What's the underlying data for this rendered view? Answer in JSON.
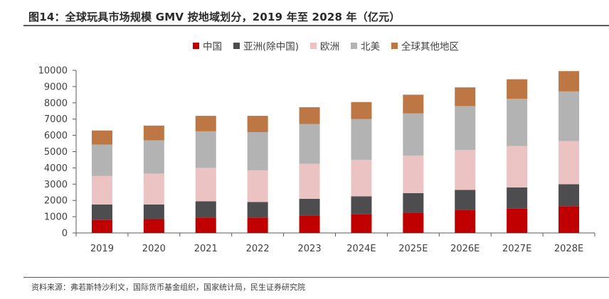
{
  "title": "图14：全球玩具市场规模 GMV 按地域划分，2019 年至 2028 年（亿元）",
  "source": "资料来源：弗若斯特沙利文，国际货币基金组织，国家统计局，民生证券研究院",
  "chart_data": {
    "type": "bar",
    "stacked": true,
    "title": "全球玩具市场规模 GMV 按地域划分，2019 年至 2028 年（亿元）",
    "xlabel": "",
    "ylabel": "",
    "ylim": [
      0,
      10000
    ],
    "yticks": [
      0,
      1000,
      2000,
      3000,
      4000,
      5000,
      6000,
      7000,
      8000,
      9000,
      10000
    ],
    "grid": false,
    "legend_position": "top-center",
    "categories": [
      "2019",
      "2020",
      "2021",
      "2022",
      "2023",
      "2024E",
      "2025E",
      "2026E",
      "2027E",
      "2028E"
    ],
    "series": [
      {
        "name": "中国",
        "color": "#C00000",
        "values": [
          800,
          850,
          950,
          950,
          1050,
          1150,
          1250,
          1400,
          1500,
          1650
        ]
      },
      {
        "name": "亚洲(除中国)",
        "color": "#4D4D4F",
        "values": [
          950,
          900,
          1000,
          950,
          1050,
          1100,
          1200,
          1250,
          1300,
          1350
        ]
      },
      {
        "name": "欧洲",
        "color": "#EBC3C3",
        "values": [
          1750,
          1900,
          2050,
          1950,
          2150,
          2250,
          2300,
          2450,
          2550,
          2650
        ]
      },
      {
        "name": "北美",
        "color": "#B3B3B3",
        "values": [
          1930,
          2050,
          2250,
          2350,
          2450,
          2500,
          2600,
          2700,
          2900,
          3050
        ]
      },
      {
        "name": "全球其他地区",
        "color": "#BD7744",
        "values": [
          870,
          900,
          950,
          1000,
          1030,
          1050,
          1150,
          1150,
          1200,
          1250
        ]
      }
    ]
  }
}
